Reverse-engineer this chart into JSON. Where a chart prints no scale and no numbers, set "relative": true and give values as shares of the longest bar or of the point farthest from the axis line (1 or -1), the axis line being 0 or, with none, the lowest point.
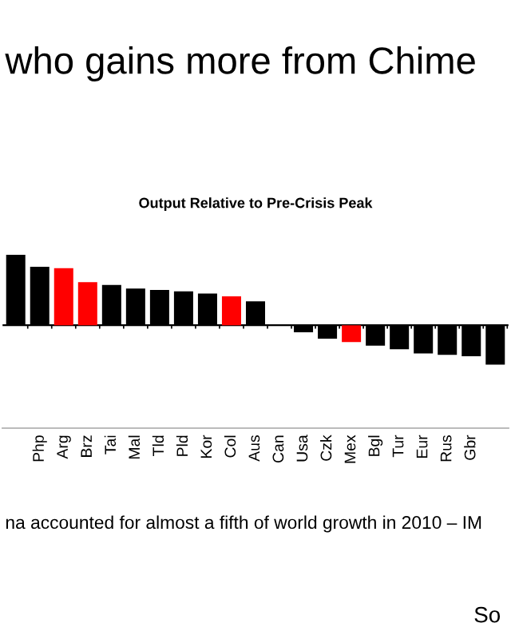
{
  "chart_data": {
    "type": "bar",
    "title": "Output Relative to Pre-Crisis Peak",
    "relative": true,
    "annotations": [
      "who gains more from Chime",
      "na accounted for almost a fifth of world growth in 2010 – IM",
      "So"
    ],
    "categories": [
      null,
      "Php",
      "Arg",
      "Brz",
      "Tai",
      "Mal",
      "Tld",
      "Pld",
      "Kor",
      "Col",
      "Aus",
      "Can",
      "Usa",
      "Czk",
      "Mex",
      "Bgl",
      "Tur",
      "Eur",
      "Rus",
      "Gbr",
      null
    ],
    "values": [
      1,
      0.83,
      0.81,
      0.61,
      0.57,
      0.52,
      0.5,
      0.48,
      0.45,
      0.41,
      0.34,
      0.01,
      -0.1,
      -0.19,
      -0.24,
      -0.29,
      -0.34,
      -0.4,
      -0.42,
      -0.44,
      -0.56
    ],
    "colors": [
      "#000000",
      "#000000",
      "#ff0000",
      "#ff0000",
      "#000000",
      "#000000",
      "#000000",
      "#000000",
      "#000000",
      "#ff0000",
      "#000000",
      "#000000",
      "#000000",
      "#000000",
      "#ff0000",
      "#000000",
      "#000000",
      "#000000",
      "#000000",
      "#000000",
      "#000000"
    ]
  }
}
